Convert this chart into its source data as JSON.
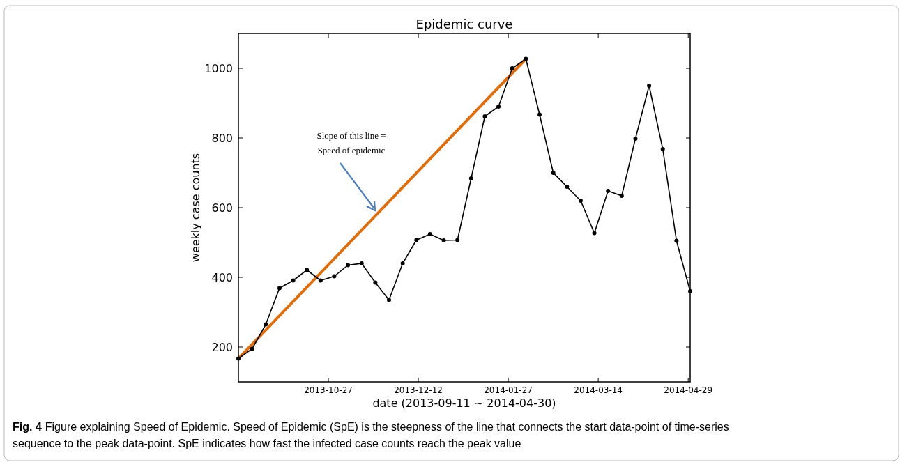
{
  "chart_data": {
    "type": "line",
    "title": "Epidemic curve",
    "xlabel": "date (2013-09-11 ~ 2014-04-30)",
    "ylabel": "weekly case counts",
    "x": [
      "2013-09-11",
      "2013-09-18",
      "2013-09-25",
      "2013-10-02",
      "2013-10-09",
      "2013-10-16",
      "2013-10-23",
      "2013-10-30",
      "2013-11-06",
      "2013-11-13",
      "2013-11-20",
      "2013-11-27",
      "2013-12-04",
      "2013-12-11",
      "2013-12-18",
      "2013-12-25",
      "2014-01-01",
      "2014-01-08",
      "2014-01-15",
      "2014-01-22",
      "2014-01-29",
      "2014-02-05",
      "2014-02-12",
      "2014-02-19",
      "2014-02-26",
      "2014-03-05",
      "2014-03-12",
      "2014-03-19",
      "2014-03-26",
      "2014-04-02",
      "2014-04-09",
      "2014-04-16",
      "2014-04-23",
      "2014-04-30"
    ],
    "series": [
      {
        "color": "#000000",
        "marker": "circle",
        "values": [
          167,
          195,
          265,
          369,
          391,
          421,
          391,
          403,
          435,
          440,
          385,
          335,
          440,
          507,
          524,
          506,
          507,
          684,
          862,
          890,
          1000,
          1027,
          867,
          700,
          660,
          620,
          527,
          648,
          634,
          798,
          950,
          768,
          505,
          360
        ]
      },
      {
        "color": "#e36c0a",
        "marker": "none",
        "x": [
          "2013-09-11",
          "2014-02-05"
        ],
        "values": [
          167,
          1027
        ]
      }
    ],
    "xlim": [
      "2013-09-11",
      "2014-04-30"
    ],
    "ylim": [
      100,
      1100
    ],
    "xticks": [
      "2013-10-27",
      "2013-12-12",
      "2014-01-27",
      "2014-03-14",
      "2014-04-29"
    ],
    "yticks": [
      200,
      400,
      600,
      800,
      1000
    ],
    "grid": false,
    "annotations": [
      "Slope of this line = Speed of epidemic",
      "Fig. 4",
      "Figure explaining Speed of Epidemic. Speed of Epidemic (SpE) is the steepness of the line that connects the start data-point of time-series sequence to the peak data-point. SpE indicates how fast the infected case counts reach the peak value"
    ]
  }
}
